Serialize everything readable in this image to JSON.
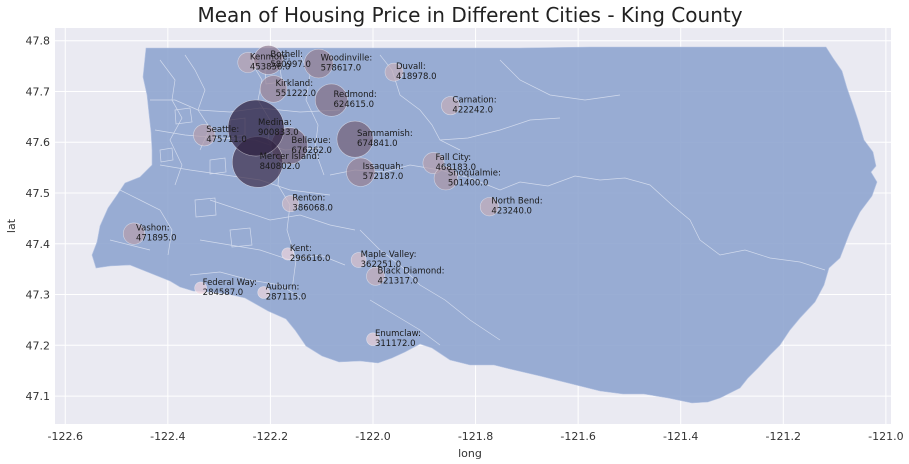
{
  "chart_data": {
    "type": "scatter",
    "title": "Mean of Housing Price in Different Cities - King County",
    "xlabel": "long",
    "ylabel": "lat",
    "xlim": [
      -122.62,
      -120.99
    ],
    "ylim": [
      47.045,
      47.825
    ],
    "xticks": [
      -122.6,
      -122.4,
      -122.2,
      -122.0,
      -121.8,
      -121.6,
      -121.4,
      -121.2,
      -121.0
    ],
    "xtick_labels": [
      "-122.6",
      "-122.4",
      "-122.2",
      "-122.0",
      "-121.8",
      "-121.6",
      "-121.4",
      "-121.2",
      "-121.0"
    ],
    "yticks": [
      47.1,
      47.2,
      47.3,
      47.4,
      47.5,
      47.6,
      47.7,
      47.8
    ],
    "ytick_labels": [
      "47.1",
      "47.2",
      "47.3",
      "47.4",
      "47.5",
      "47.6",
      "47.7",
      "47.8"
    ],
    "grid": true,
    "background_color": "#eaeaf2",
    "map_fill_color": "#8fa5cf",
    "color_low": "#f0d6de",
    "color_high": "#2d1e3e",
    "points": [
      {
        "name": "Kenmore:",
        "value": "453856.0",
        "price": 453856,
        "long": -122.244,
        "lat": 47.757
      },
      {
        "name": "Bothell:",
        "value": "580997.0",
        "price": 580997,
        "long": -122.204,
        "lat": 47.762
      },
      {
        "name": "Woodinville:",
        "value": "578617.0",
        "price": 578617,
        "long": -122.106,
        "lat": 47.755
      },
      {
        "name": "Duvall:",
        "value": "418978.0",
        "price": 418978,
        "long": -121.959,
        "lat": 47.738
      },
      {
        "name": "Kirkland:",
        "value": "551222.0",
        "price": 551222,
        "long": -122.194,
        "lat": 47.705
      },
      {
        "name": "Redmond:",
        "value": "624615.0",
        "price": 624615,
        "long": -122.081,
        "lat": 47.683
      },
      {
        "name": "Carnation:",
        "value": "422242.0",
        "price": 422242,
        "long": -121.849,
        "lat": 47.672
      },
      {
        "name": "Medina:",
        "value": "900833.0",
        "price": 900833,
        "long": -122.228,
        "lat": 47.628
      },
      {
        "name": "Seattle:",
        "value": "475711.0",
        "price": 475711,
        "long": -122.329,
        "lat": 47.614
      },
      {
        "name": "Bellevue:",
        "value": "676262.0",
        "price": 676262,
        "long": -122.163,
        "lat": 47.593
      },
      {
        "name": "Sammamish:",
        "value": "674841.0",
        "price": 674841,
        "long": -122.035,
        "lat": 47.606
      },
      {
        "name": "Mercer Island:",
        "value": "840802.0",
        "price": 840802,
        "long": -122.225,
        "lat": 47.561
      },
      {
        "name": "Fall City:",
        "value": "468183.0",
        "price": 468183,
        "long": -121.882,
        "lat": 47.559
      },
      {
        "name": "Issaquah:",
        "value": "572187.0",
        "price": 572187,
        "long": -122.024,
        "lat": 47.541
      },
      {
        "name": "Snoqualmie:",
        "value": "501400.0",
        "price": 501400,
        "long": -121.858,
        "lat": 47.529
      },
      {
        "name": "Renton:",
        "value": "386068.0",
        "price": 386068,
        "long": -122.161,
        "lat": 47.479
      },
      {
        "name": "North Bend:",
        "value": "423240.0",
        "price": 423240,
        "long": -121.773,
        "lat": 47.473
      },
      {
        "name": "Vashon:",
        "value": "471895.0",
        "price": 471895,
        "long": -122.466,
        "lat": 47.42
      },
      {
        "name": "Kent:",
        "value": "296616.0",
        "price": 296616,
        "long": -122.166,
        "lat": 47.38
      },
      {
        "name": "Maple Valley:",
        "value": "362251.0",
        "price": 362251,
        "long": -122.028,
        "lat": 47.368
      },
      {
        "name": "Black Diamond:",
        "value": "421317.0",
        "price": 421317,
        "long": -121.995,
        "lat": 47.336
      },
      {
        "name": "Federal Way:",
        "value": "284587.0",
        "price": 284587,
        "long": -122.336,
        "lat": 47.313
      },
      {
        "name": "Auburn:",
        "value": "287115.0",
        "price": 287115,
        "long": -122.213,
        "lat": 47.304
      },
      {
        "name": "Enumclaw:",
        "value": "311172.0",
        "price": 311172,
        "long": -122.0,
        "lat": 47.212
      }
    ]
  }
}
